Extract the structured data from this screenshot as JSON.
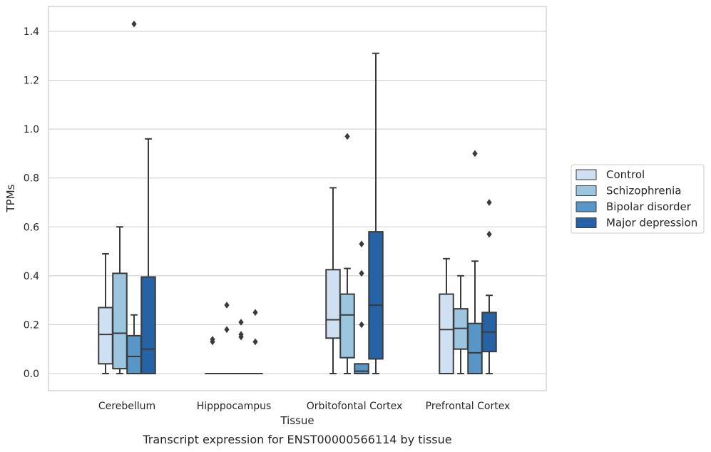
{
  "chart_data": {
    "type": "box",
    "caption": "Transcript expression for ENST00000566114 by tissue",
    "xlabel": "Tissue",
    "ylabel": "TPMs",
    "ylim": [
      -0.07,
      1.5
    ],
    "yticks": [
      0.0,
      0.2,
      0.4,
      0.6,
      0.8,
      1.0,
      1.2,
      1.4
    ],
    "ytick_labels": [
      "0.0",
      "0.2",
      "0.4",
      "0.6",
      "0.8",
      "1.0",
      "1.2",
      "1.4"
    ],
    "grid": "horizontal",
    "legend_position": "right",
    "categories": [
      "Cerebellum",
      "Hipppocampus",
      "Orbitofontal Cortex",
      "Prefrontal Cortex"
    ],
    "series": [
      {
        "name": "Control",
        "color": "#cfe0f2",
        "boxes": [
          {
            "q1": 0.04,
            "median": 0.16,
            "q3": 0.27,
            "whislo": 0.0,
            "whishi": 0.49,
            "fliers": []
          },
          {
            "q1": 0.0,
            "median": 0.0,
            "q3": 0.0,
            "whislo": 0.0,
            "whishi": 0.0,
            "fliers": [
              0.13,
              0.14
            ]
          },
          {
            "q1": 0.145,
            "median": 0.22,
            "q3": 0.425,
            "whislo": 0.0,
            "whishi": 0.76,
            "fliers": []
          },
          {
            "q1": 0.0,
            "median": 0.18,
            "q3": 0.325,
            "whislo": 0.0,
            "whishi": 0.47,
            "fliers": []
          }
        ]
      },
      {
        "name": "Schizophrenia",
        "color": "#9cc5e0",
        "boxes": [
          {
            "q1": 0.02,
            "median": 0.165,
            "q3": 0.41,
            "whislo": 0.0,
            "whishi": 0.6,
            "fliers": []
          },
          {
            "q1": 0.0,
            "median": 0.0,
            "q3": 0.0,
            "whislo": 0.0,
            "whishi": 0.0,
            "fliers": [
              0.18,
              0.28
            ]
          },
          {
            "q1": 0.065,
            "median": 0.24,
            "q3": 0.325,
            "whislo": 0.0,
            "whishi": 0.43,
            "fliers": [
              0.97
            ]
          },
          {
            "q1": 0.1,
            "median": 0.185,
            "q3": 0.265,
            "whislo": 0.0,
            "whishi": 0.4,
            "fliers": []
          }
        ]
      },
      {
        "name": "Bipolar disorder",
        "color": "#5796c7",
        "boxes": [
          {
            "q1": 0.0,
            "median": 0.07,
            "q3": 0.155,
            "whislo": 0.0,
            "whishi": 0.24,
            "fliers": [
              1.43
            ]
          },
          {
            "q1": 0.0,
            "median": 0.0,
            "q3": 0.0,
            "whislo": 0.0,
            "whishi": 0.0,
            "fliers": [
              0.15,
              0.16,
              0.21
            ]
          },
          {
            "q1": 0.0,
            "median": 0.01,
            "q3": 0.04,
            "whislo": 0.0,
            "whishi": 0.04,
            "fliers": [
              0.2,
              0.41,
              0.53
            ]
          },
          {
            "q1": 0.0,
            "median": 0.085,
            "q3": 0.205,
            "whislo": 0.0,
            "whishi": 0.46,
            "fliers": [
              0.9
            ]
          }
        ]
      },
      {
        "name": "Major depression",
        "color": "#2563a6",
        "boxes": [
          {
            "q1": 0.0,
            "median": 0.1,
            "q3": 0.395,
            "whislo": 0.0,
            "whishi": 0.96,
            "fliers": []
          },
          {
            "q1": 0.0,
            "median": 0.0,
            "q3": 0.0,
            "whislo": 0.0,
            "whishi": 0.0,
            "fliers": [
              0.13,
              0.25
            ]
          },
          {
            "q1": 0.06,
            "median": 0.28,
            "q3": 0.58,
            "whislo": 0.0,
            "whishi": 1.31,
            "fliers": []
          },
          {
            "q1": 0.09,
            "median": 0.17,
            "q3": 0.25,
            "whislo": 0.0,
            "whishi": 0.32,
            "fliers": [
              0.57,
              0.7
            ]
          }
        ]
      }
    ]
  }
}
